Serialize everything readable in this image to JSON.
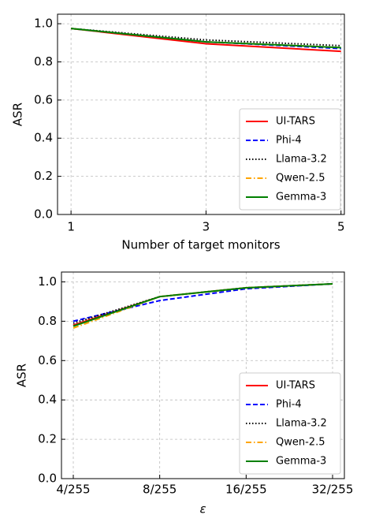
{
  "chart_data": [
    {
      "type": "line",
      "ylabel": "ASR",
      "xlabel": "Number of target monitors",
      "x": [
        1,
        3,
        5
      ],
      "xlim": [
        0.8,
        5.05
      ],
      "xticks": [
        1,
        3,
        5
      ],
      "ylim": [
        0,
        1.05
      ],
      "yticks": [
        {
          "value": 0,
          "label": "0.0"
        },
        0.2,
        0.4,
        0.6,
        0.8,
        {
          "value": 1,
          "label": "1.0"
        }
      ],
      "grid": true,
      "legend": "lower right",
      "series": [
        {
          "name": "UI-TARS",
          "color": "#ff0000",
          "linestyle": "solid",
          "values": [
            0.975,
            0.895,
            0.855
          ]
        },
        {
          "name": "Phi-4",
          "color": "#0000ff",
          "linestyle": "dashed",
          "values": [
            0.975,
            0.905,
            0.87
          ]
        },
        {
          "name": "Llama-3.2",
          "color": "#000000",
          "linestyle": "dotted",
          "values": [
            0.975,
            0.915,
            0.885
          ]
        },
        {
          "name": "Qwen-2.5",
          "color": "#ffa500",
          "linestyle": "dashdot",
          "values": [
            0.975,
            0.905,
            0.875
          ]
        },
        {
          "name": "Gemma-3",
          "color": "#008000",
          "linestyle": "solid",
          "values": [
            0.975,
            0.905,
            0.875
          ]
        }
      ]
    },
    {
      "type": "line",
      "ylabel": "ASR",
      "xlabel": "ε",
      "categories": [
        "4/255",
        "8/255",
        "16/255",
        "32/255"
      ],
      "ylim": [
        0,
        1.05
      ],
      "yticks": [
        {
          "value": 0,
          "label": "0.0"
        },
        0.2,
        0.4,
        0.6,
        0.8,
        {
          "value": 1,
          "label": "1.0"
        }
      ],
      "grid": true,
      "legend": "lower right",
      "series": [
        {
          "name": "UI-TARS",
          "color": "#ff0000",
          "linestyle": "solid",
          "values": [
            0.78,
            0.925,
            0.97,
            0.99
          ]
        },
        {
          "name": "Phi-4",
          "color": "#0000ff",
          "linestyle": "dashed",
          "values": [
            0.8,
            0.905,
            0.965,
            0.99
          ]
        },
        {
          "name": "Llama-3.2",
          "color": "#000000",
          "linestyle": "dotted",
          "values": [
            0.79,
            0.925,
            0.97,
            0.99
          ]
        },
        {
          "name": "Qwen-2.5",
          "color": "#ffa500",
          "linestyle": "dashdot",
          "values": [
            0.765,
            0.925,
            0.97,
            0.99
          ]
        },
        {
          "name": "Gemma-3",
          "color": "#008000",
          "linestyle": "solid",
          "values": [
            0.775,
            0.925,
            0.97,
            0.99
          ]
        }
      ]
    }
  ]
}
